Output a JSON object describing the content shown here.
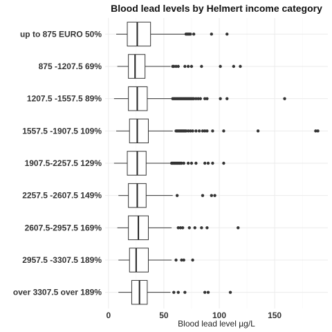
{
  "chart_data": {
    "type": "boxplot",
    "title": "Blood lead levels by Helmert income category",
    "xlabel": "Blood lead level µg/L",
    "ylabel": "",
    "xlim": [
      -3,
      198
    ],
    "x_ticks": [
      0,
      50,
      100,
      150
    ],
    "grid": true,
    "orientation": "horizontal",
    "categories": [
      {
        "label": "over 3307.5 over 189%",
        "whisker_low": 9,
        "q1": 21,
        "median": 28,
        "q3": 35,
        "whisker_high": 56,
        "outliers": [
          59,
          63,
          69,
          87,
          90,
          110
        ]
      },
      {
        "label": "2957.5 -3307.5 189%",
        "whisker_low": 9,
        "q1": 19,
        "median": 25,
        "q3": 36,
        "whisker_high": 57,
        "outliers": [
          61,
          66,
          68,
          76
        ]
      },
      {
        "label": "2607.5-2957.5 169%",
        "whisker_low": 8,
        "q1": 18,
        "median": 27,
        "q3": 36,
        "whisker_high": 57,
        "outliers": [
          63,
          65,
          67,
          73,
          78,
          84,
          89,
          117
        ]
      },
      {
        "label": "2257.5 -2607.5 149%",
        "whisker_low": 9,
        "q1": 18,
        "median": 26,
        "q3": 34,
        "whisker_high": 58,
        "outliers": [
          62,
          85,
          93,
          96
        ]
      },
      {
        "label": "1907.5-2257.5 129%",
        "whisker_low": 5,
        "q1": 17,
        "median": 26,
        "q3": 34,
        "whisker_high": 56,
        "outliers": [
          57,
          58,
          59,
          60,
          61,
          62,
          63,
          64,
          65,
          66,
          68,
          72,
          75,
          79,
          87,
          90,
          94,
          104
        ]
      },
      {
        "label": "1557.5 -1907.5 109%",
        "whisker_low": 7,
        "q1": 19,
        "median": 26,
        "q3": 36,
        "whisker_high": 58,
        "outliers": [
          61,
          62,
          63,
          64,
          65,
          66,
          67,
          68,
          69,
          70,
          72,
          74,
          76,
          79,
          82,
          85,
          87,
          89,
          94,
          104,
          135,
          187,
          189
        ]
      },
      {
        "label": "1207.5 -1557.5 89%",
        "whisker_low": 5,
        "q1": 18,
        "median": 26,
        "q3": 35,
        "whisker_high": 57,
        "outliers": [
          58,
          59,
          60,
          61,
          62,
          63,
          64,
          65,
          66,
          67,
          68,
          69,
          70,
          71,
          72,
          73,
          74,
          75,
          76,
          77,
          79,
          81,
          83,
          87,
          89,
          101,
          107,
          159
        ]
      },
      {
        "label": "875 -1207.5 69%",
        "whisker_low": 8,
        "q1": 18,
        "median": 24,
        "q3": 33,
        "whisker_high": 56,
        "outliers": [
          58,
          59,
          61,
          63,
          69,
          72,
          75,
          84,
          101,
          113,
          119
        ]
      },
      {
        "label": "up to 875 EURO 50%",
        "whisker_low": 7,
        "q1": 17,
        "median": 26,
        "q3": 38,
        "whisker_high": 69,
        "outliers": [
          70,
          71,
          72,
          73,
          74,
          77,
          93,
          107
        ]
      }
    ]
  }
}
